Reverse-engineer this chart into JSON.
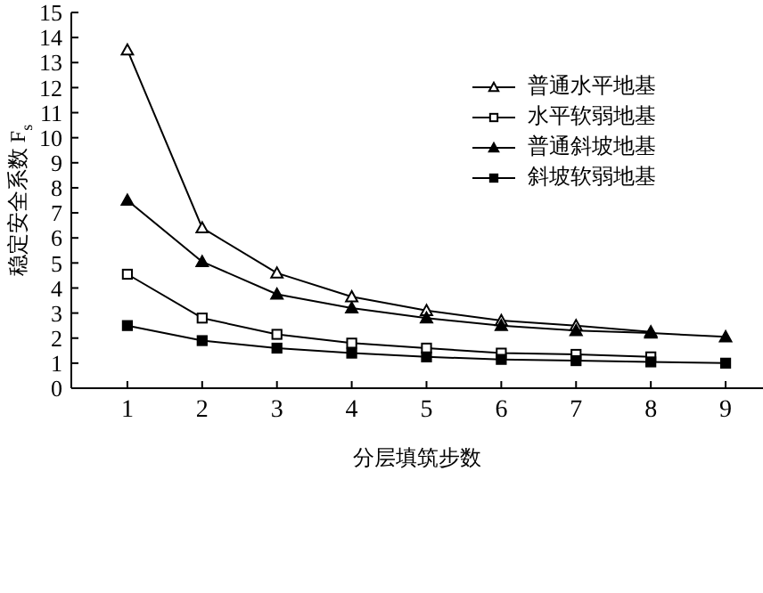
{
  "chart_data": {
    "type": "line",
    "xlabel": "分层填筑步数",
    "ylabel": "稳定安全系数 F$_{s}$",
    "x": [
      1,
      2,
      3,
      4,
      5,
      6,
      7,
      8,
      9
    ],
    "series": [
      {
        "name": "普通水平地基",
        "color": "#000000",
        "marker": "triangle",
        "values": [
          13.5,
          6.4,
          4.6,
          3.65,
          3.1,
          2.7,
          2.5,
          2.25,
          null
        ]
      },
      {
        "name": "水平软弱地基",
        "color": "#000000",
        "marker": "square",
        "values": [
          4.55,
          2.8,
          2.15,
          1.8,
          1.6,
          1.4,
          1.35,
          1.25,
          null
        ]
      },
      {
        "name": "普通斜坡地基",
        "color": "#000000",
        "marker": "triangle",
        "values": [
          7.5,
          5.05,
          3.75,
          3.2,
          2.8,
          2.5,
          2.3,
          2.2,
          2.05
        ]
      },
      {
        "name": "斜坡软弱地基",
        "color": "#000000",
        "marker": "square",
        "values": [
          2.5,
          1.9,
          1.6,
          1.4,
          1.25,
          1.15,
          1.1,
          1.05,
          1.0
        ]
      }
    ],
    "xlim": [
      0.25,
      9.5
    ],
    "xticks": [
      1,
      2,
      3,
      4,
      5,
      6,
      7,
      8,
      9
    ],
    "ylim": [
      0,
      15
    ],
    "yticks": [
      0,
      1,
      2,
      3,
      4,
      5,
      6,
      7,
      8,
      9,
      10,
      11,
      12,
      13,
      14,
      15
    ],
    "grid": false,
    "legend": "top right",
    "line_style": "solid"
  }
}
